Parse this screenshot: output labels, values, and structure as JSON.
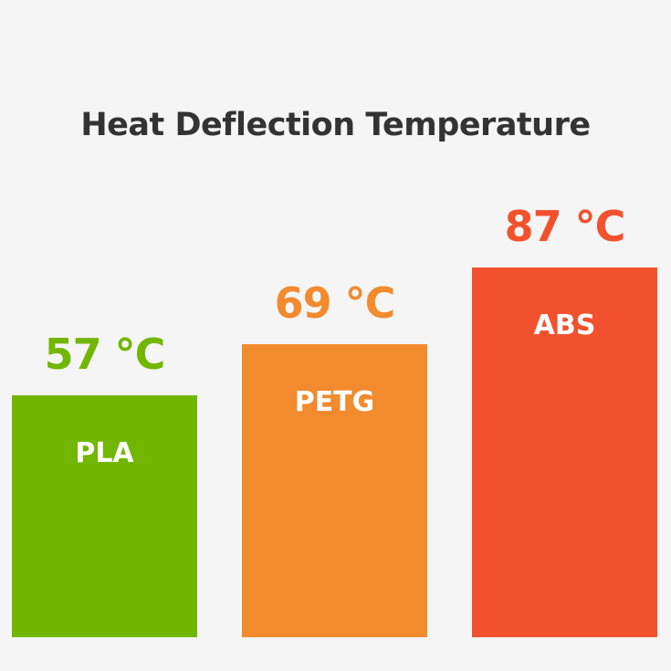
{
  "chart_data": {
    "type": "bar",
    "title": "Heat Deflection Temperature",
    "categories": [
      "PLA",
      "PETG",
      "ABS"
    ],
    "values": [
      57,
      69,
      87
    ],
    "value_labels": [
      "57 °C",
      "69 °C",
      "87 °C"
    ],
    "unit": "°C",
    "colors": [
      "#72b600",
      "#f28a2e",
      "#f2512e"
    ],
    "ylim": [
      0,
      87
    ],
    "grid": false,
    "axes_visible": false
  }
}
